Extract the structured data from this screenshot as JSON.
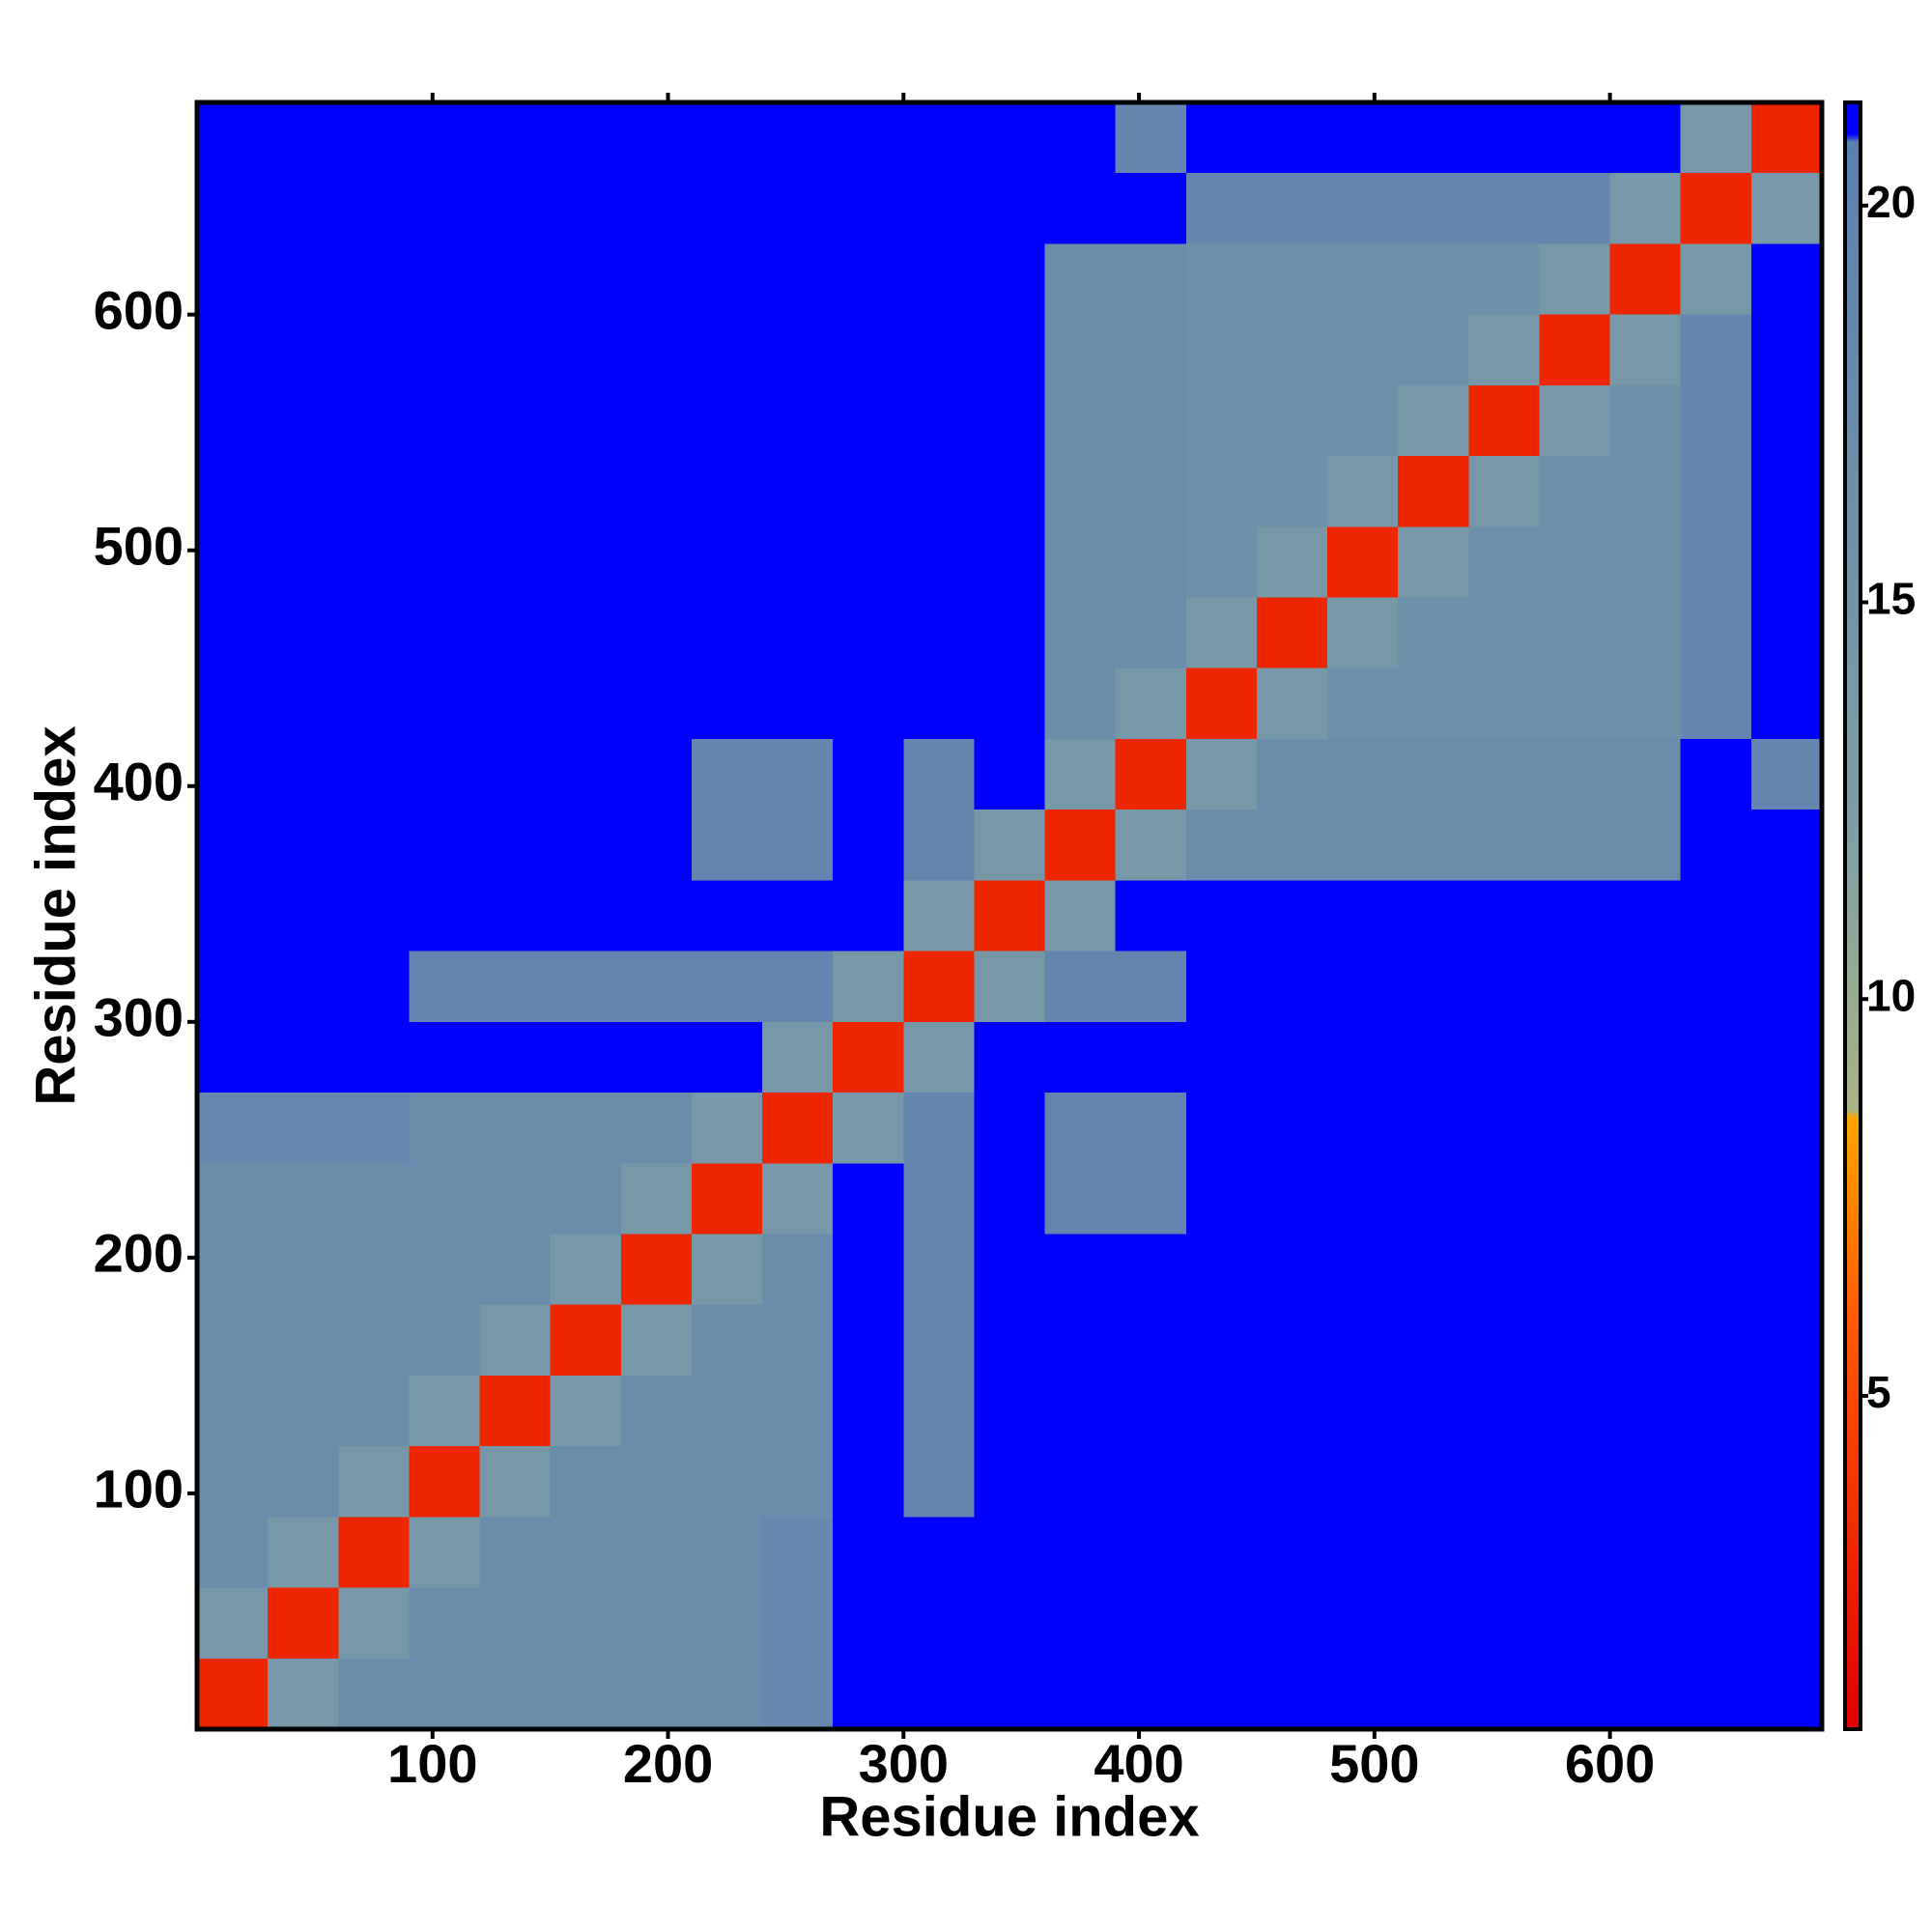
{
  "chart_data": {
    "type": "heatmap",
    "xlabel": "Residue index",
    "ylabel": "Residue index",
    "xbins": [
      0,
      30,
      60,
      90,
      120,
      150,
      180,
      210,
      240,
      270,
      300,
      330,
      360,
      390,
      420,
      450,
      480,
      510,
      540,
      570,
      600,
      630,
      660,
      690
    ],
    "ybins": [
      0,
      30,
      60,
      90,
      120,
      150,
      180,
      210,
      240,
      270,
      300,
      330,
      360,
      390,
      420,
      450,
      480,
      510,
      540,
      570,
      600,
      630,
      660,
      690
    ],
    "xlim": [
      0,
      690
    ],
    "ylim": [
      0,
      690
    ],
    "xticks": [
      100,
      200,
      300,
      400,
      500,
      600
    ],
    "yticks": [
      100,
      200,
      300,
      400,
      500,
      600
    ],
    "clim": [
      0.8,
      21.3
    ],
    "cticks": [
      5,
      10,
      15,
      20
    ],
    "colorscale": [
      [
        0.8,
        "#e00000"
      ],
      [
        6,
        "#ff5a00"
      ],
      [
        8.5,
        "#ffa500"
      ],
      [
        8.6,
        "#a9b482"
      ],
      [
        12,
        "#7f9fa5"
      ],
      [
        20.8,
        "#5a80b0"
      ],
      [
        20.9,
        "#0000ff"
      ],
      [
        21.3,
        "#0000ff"
      ]
    ],
    "z": [
      [
        3,
        14,
        17,
        17,
        17,
        17,
        17,
        17,
        18,
        21,
        21,
        21,
        21,
        21,
        21,
        21,
        21,
        21,
        21,
        21,
        21,
        21,
        21
      ],
      [
        14,
        3,
        14,
        17,
        17,
        17,
        17,
        17,
        18,
        21,
        21,
        21,
        21,
        21,
        21,
        21,
        21,
        21,
        21,
        21,
        21,
        21,
        21
      ],
      [
        17,
        14,
        3,
        14,
        17,
        17,
        17,
        17,
        18,
        21,
        21,
        21,
        21,
        21,
        21,
        21,
        21,
        21,
        21,
        21,
        21,
        21,
        21
      ],
      [
        17,
        17,
        14,
        3,
        14,
        17,
        17,
        17,
        17,
        21,
        19,
        21,
        21,
        21,
        21,
        21,
        21,
        21,
        21,
        21,
        21,
        21,
        21
      ],
      [
        17,
        17,
        17,
        14,
        3,
        14,
        17,
        17,
        17,
        21,
        19,
        21,
        21,
        21,
        21,
        21,
        21,
        21,
        21,
        21,
        21,
        21,
        21
      ],
      [
        17,
        17,
        17,
        17,
        14,
        3,
        14,
        17,
        17,
        21,
        19,
        21,
        21,
        21,
        21,
        21,
        21,
        21,
        21,
        21,
        21,
        21,
        21
      ],
      [
        17,
        17,
        17,
        17,
        17,
        14,
        3,
        14,
        17,
        21,
        19,
        21,
        21,
        21,
        21,
        21,
        21,
        21,
        21,
        21,
        21,
        21,
        21
      ],
      [
        17,
        17,
        17,
        17,
        17,
        17,
        14,
        3,
        14,
        21,
        19,
        21,
        19,
        19,
        21,
        21,
        21,
        21,
        21,
        21,
        21,
        21,
        21
      ],
      [
        18,
        18,
        18,
        17,
        17,
        17,
        17,
        14,
        3,
        14,
        19,
        21,
        19,
        19,
        21,
        21,
        21,
        21,
        21,
        21,
        21,
        21,
        21
      ],
      [
        21,
        21,
        21,
        21,
        21,
        21,
        21,
        21,
        14,
        3,
        14,
        21,
        21,
        21,
        21,
        21,
        21,
        21,
        21,
        21,
        21,
        21,
        21
      ],
      [
        21,
        21,
        21,
        19,
        19,
        19,
        19,
        19,
        19,
        14,
        3,
        14,
        19,
        19,
        21,
        21,
        21,
        21,
        21,
        21,
        21,
        21,
        21
      ],
      [
        21,
        21,
        21,
        21,
        21,
        21,
        21,
        21,
        21,
        21,
        14,
        3,
        14,
        21,
        21,
        21,
        21,
        21,
        21,
        21,
        21,
        21,
        21
      ],
      [
        21,
        21,
        21,
        21,
        21,
        21,
        21,
        19,
        19,
        21,
        19,
        14,
        3,
        14,
        17,
        17,
        17,
        17,
        17,
        17,
        17,
        21,
        21
      ],
      [
        21,
        21,
        21,
        21,
        21,
        21,
        21,
        19,
        19,
        21,
        19,
        21,
        14,
        3,
        14,
        17,
        17,
        17,
        17,
        17,
        17,
        21,
        19
      ],
      [
        21,
        21,
        21,
        21,
        21,
        21,
        21,
        21,
        21,
        21,
        21,
        21,
        17,
        14,
        3,
        14,
        16,
        16,
        16,
        16,
        16,
        19,
        21
      ],
      [
        21,
        21,
        21,
        21,
        21,
        21,
        21,
        21,
        21,
        21,
        21,
        21,
        17,
        17,
        14,
        3,
        14,
        16,
        16,
        16,
        16,
        19,
        21
      ],
      [
        21,
        21,
        21,
        21,
        21,
        21,
        21,
        21,
        21,
        21,
        21,
        21,
        17,
        17,
        16,
        14,
        3,
        14,
        16,
        16,
        16,
        19,
        21
      ],
      [
        21,
        21,
        21,
        21,
        21,
        21,
        21,
        21,
        21,
        21,
        21,
        21,
        17,
        17,
        16,
        16,
        14,
        3,
        14,
        16,
        16,
        19,
        21
      ],
      [
        21,
        21,
        21,
        21,
        21,
        21,
        21,
        21,
        21,
        21,
        21,
        21,
        17,
        17,
        16,
        16,
        16,
        14,
        3,
        14,
        16,
        19,
        21
      ],
      [
        21,
        21,
        21,
        21,
        21,
        21,
        21,
        21,
        21,
        21,
        21,
        21,
        17,
        17,
        16,
        16,
        16,
        16,
        14,
        3,
        14,
        19,
        21
      ],
      [
        21,
        21,
        21,
        21,
        21,
        21,
        21,
        21,
        21,
        21,
        21,
        21,
        17,
        17,
        16,
        16,
        16,
        16,
        16,
        14,
        3,
        14,
        21
      ],
      [
        21,
        21,
        21,
        21,
        21,
        21,
        21,
        21,
        21,
        21,
        21,
        21,
        21,
        21,
        19,
        19,
        19,
        19,
        19,
        19,
        14,
        3,
        14
      ],
      [
        21,
        21,
        21,
        21,
        21,
        21,
        21,
        21,
        21,
        21,
        21,
        21,
        21,
        19,
        21,
        21,
        21,
        21,
        21,
        21,
        21,
        14,
        3
      ]
    ]
  }
}
